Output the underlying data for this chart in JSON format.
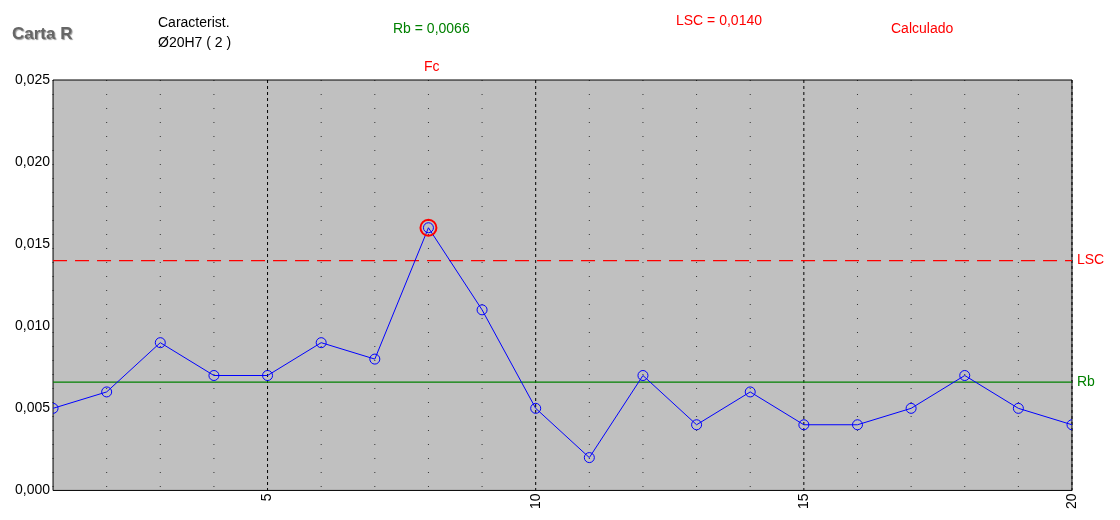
{
  "chart_data": {
    "type": "line",
    "title": "Carta R",
    "subtitle": "Caracterist.\nØ20H7 ( 2 )",
    "annotations": [
      "Rb = 0,0066",
      "LSC = 0,0140",
      "Calculado",
      "Fc"
    ],
    "x": [
      1,
      2,
      3,
      4,
      5,
      6,
      7,
      8,
      9,
      10,
      11,
      12,
      13,
      14,
      15,
      16,
      17,
      18,
      19,
      20
    ],
    "series": [
      {
        "color": "#0000ff",
        "values": [
          0.005,
          0.006,
          0.009,
          0.007,
          0.007,
          0.009,
          0.008,
          0.016,
          0.011,
          0.005,
          0.002,
          0.007,
          0.004,
          0.006,
          0.004,
          0.004,
          0.005,
          0.007,
          0.005,
          0.004
        ]
      }
    ],
    "xlim": [
      1,
      20
    ],
    "xticks": [
      5,
      10,
      15,
      20
    ],
    "ylim": [
      0,
      0.025
    ],
    "yticks": [
      {
        "value": 0,
        "label": "0,000"
      },
      {
        "value": 0.005,
        "label": "0,005"
      },
      {
        "value": 0.01,
        "label": "0,010"
      },
      {
        "value": 0.015,
        "label": "0,015"
      },
      {
        "value": 0.02,
        "label": "0,020"
      },
      {
        "value": 0.025,
        "label": "0,025"
      }
    ],
    "ref_lines": [
      {
        "axis": "y",
        "value": 0.0066,
        "label": "Rb",
        "color": "#008000",
        "line_style": "solid"
      },
      {
        "axis": "y",
        "value": 0.014,
        "label": "LSC",
        "color": "#ff0000",
        "line_style": "dashed"
      }
    ],
    "grid": "x",
    "marker": "circle",
    "line_style": "solid",
    "legend": false
  }
}
